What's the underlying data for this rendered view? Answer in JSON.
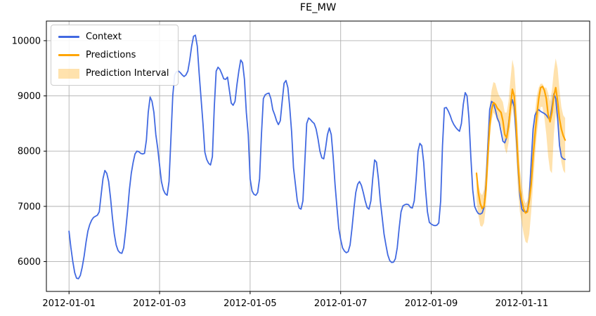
{
  "title": "FE_MW",
  "legend": {
    "items": [
      {
        "label": "Context",
        "type": "line",
        "color": "#4169e1"
      },
      {
        "label": "Predictions",
        "type": "line",
        "color": "#ffa500"
      },
      {
        "label": "Prediction Interval",
        "type": "patch",
        "color": "#ffa500",
        "opacity": 0.32
      }
    ]
  },
  "chart_data": {
    "type": "line",
    "title": "FE_MW",
    "xlabel": "",
    "ylabel": "",
    "grid": true,
    "legend_position": "upper left",
    "x_start": "2012-01-01 00:00",
    "x_freq": "1 hour",
    "x_axis": {
      "tick_hours": [
        0,
        48,
        96,
        144,
        192,
        240
      ],
      "tick_labels": [
        "2012-01-01",
        "2012-01-03",
        "2012-01-05",
        "2012-01-07",
        "2012-01-09",
        "2012-01-11"
      ],
      "range_hours": [
        -12,
        276
      ]
    },
    "y_axis": {
      "ticks": [
        6000,
        7000,
        8000,
        9000,
        10000
      ],
      "tick_labels": [
        "6000",
        "7000",
        "8000",
        "9000",
        "10000"
      ],
      "range": [
        5460,
        10355
      ]
    },
    "series": [
      {
        "name": "Context",
        "color": "#4169e1",
        "start_hour": 0,
        "values": [
          6550,
          6250,
          6000,
          5800,
          5700,
          5690,
          5750,
          5900,
          6100,
          6350,
          6550,
          6670,
          6750,
          6800,
          6820,
          6840,
          6900,
          7200,
          7500,
          7650,
          7600,
          7450,
          7150,
          6800,
          6500,
          6300,
          6200,
          6160,
          6150,
          6250,
          6550,
          6900,
          7300,
          7600,
          7800,
          7950,
          8000,
          7990,
          7960,
          7950,
          7960,
          8200,
          8700,
          8980,
          8900,
          8700,
          8300,
          8050,
          7750,
          7450,
          7300,
          7230,
          7200,
          7450,
          8200,
          9000,
          9380,
          9440,
          9450,
          9420,
          9380,
          9350,
          9380,
          9450,
          9650,
          9900,
          10080,
          10100,
          9900,
          9400,
          8950,
          8500,
          7980,
          7850,
          7780,
          7750,
          7900,
          8800,
          9450,
          9520,
          9480,
          9400,
          9310,
          9300,
          9340,
          9100,
          8870,
          8830,
          8900,
          9200,
          9450,
          9650,
          9600,
          9300,
          8700,
          8300,
          7500,
          7280,
          7220,
          7200,
          7250,
          7500,
          8300,
          8950,
          9020,
          9040,
          9050,
          8950,
          8750,
          8660,
          8550,
          8480,
          8550,
          8900,
          9230,
          9280,
          9150,
          8800,
          8350,
          7700,
          7400,
          7100,
          6970,
          6950,
          7100,
          7800,
          8500,
          8600,
          8570,
          8530,
          8500,
          8400,
          8220,
          8000,
          7880,
          7860,
          8050,
          8300,
          8420,
          8300,
          7900,
          7400,
          7000,
          6600,
          6400,
          6250,
          6190,
          6160,
          6180,
          6300,
          6600,
          6950,
          7250,
          7400,
          7450,
          7380,
          7250,
          7100,
          6980,
          6950,
          7100,
          7500,
          7840,
          7800,
          7500,
          7100,
          6800,
          6500,
          6300,
          6120,
          6020,
          5985,
          5990,
          6050,
          6250,
          6600,
          6900,
          7010,
          7030,
          7040,
          7030,
          6980,
          6970,
          7100,
          7500,
          8000,
          8140,
          8100,
          7800,
          7300,
          6900,
          6710,
          6680,
          6660,
          6650,
          6660,
          6700,
          7100,
          8100,
          8780,
          8790,
          8730,
          8650,
          8550,
          8480,
          8430,
          8390,
          8360,
          8500,
          8850,
          9060,
          9000,
          8600,
          7900,
          7300,
          7000,
          6920,
          6870,
          6860,
          6880,
          6980,
          7400,
          8100,
          8750,
          8900,
          8870,
          8750,
          8600,
          8520,
          8350,
          8180,
          8150,
          8250,
          8500,
          8800,
          8930,
          8800,
          8300,
          7700,
          7200,
          6950,
          6910,
          6900,
          6920,
          7180,
          7800,
          8400,
          8650,
          8720,
          8750,
          8720,
          8700,
          8680,
          8650,
          8600,
          8570,
          8800,
          9040,
          8950,
          8600,
          8100,
          7900,
          7860,
          7850
        ]
      },
      {
        "name": "Predictions",
        "color": "#ffa500",
        "start_hour": 216,
        "values": [
          7600,
          7250,
          7050,
          6960,
          7000,
          7300,
          7900,
          8450,
          8750,
          8880,
          8850,
          8780,
          8740,
          8700,
          8550,
          8300,
          8240,
          8450,
          8800,
          9120,
          9000,
          8500,
          7800,
          7300,
          7100,
          6950,
          6880,
          6900,
          7100,
          7400,
          7900,
          8300,
          8650,
          8950,
          9150,
          9170,
          9100,
          8950,
          8650,
          8530,
          8700,
          9000,
          9150,
          8900,
          8580,
          8400,
          8280,
          8200
        ]
      },
      {
        "name": "Prediction Interval",
        "fill": "#ffa500",
        "opacity": 0.32,
        "start_hour": 216,
        "lower": [
          7100,
          6850,
          6650,
          6630,
          6700,
          7000,
          7600,
          8200,
          8550,
          8700,
          8650,
          8550,
          8500,
          8450,
          8300,
          8050,
          7950,
          8150,
          8500,
          8800,
          8600,
          8000,
          7300,
          6900,
          6700,
          6500,
          6360,
          6330,
          6500,
          6900,
          7400,
          7900,
          8300,
          8600,
          8800,
          8800,
          8600,
          8300,
          7900,
          7650,
          7600,
          8300,
          8700,
          8500,
          8100,
          7800,
          7650,
          7600
        ],
        "upper": [
          7690,
          7400,
          7250,
          7200,
          7300,
          7700,
          8300,
          8800,
          9100,
          9250,
          9230,
          9100,
          9000,
          8950,
          8890,
          8700,
          8700,
          8900,
          9300,
          9660,
          9500,
          9000,
          8300,
          7700,
          7400,
          7150,
          7050,
          7100,
          7400,
          7800,
          8300,
          8700,
          9000,
          9150,
          9220,
          9220,
          9150,
          9150,
          9050,
          8900,
          9100,
          9450,
          9680,
          9500,
          9100,
          8800,
          8650,
          8600
        ]
      }
    ]
  }
}
